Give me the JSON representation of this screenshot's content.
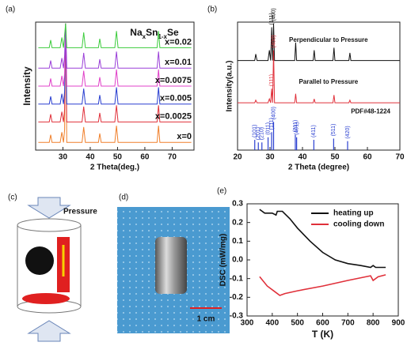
{
  "chart_data": [
    {
      "type": "line",
      "panel_label": "(a)",
      "title": [
        "Na",
        "x",
        "Sn",
        "1-x",
        "Se"
      ],
      "x_label": "2 Theta(deg.)",
      "y_label": "Intensity",
      "xlim": [
        20,
        78
      ],
      "xticks": [
        30,
        40,
        50,
        60,
        70
      ],
      "ylim": [
        0,
        100
      ],
      "x": [
        21,
        25,
        25.5,
        26,
        29,
        29.6,
        30.2,
        30.6,
        31,
        31.4,
        32,
        37,
        37.6,
        38.2,
        43,
        43.5,
        44,
        49,
        49.6,
        50.2,
        64.5,
        65,
        65.5,
        77
      ],
      "series": [
        {
          "name": "x=0",
          "color": "#f07f2a",
          "values": [
            6,
            6,
            12,
            6,
            6,
            14,
            6,
            16,
            99,
            6,
            6,
            6,
            18,
            6,
            6,
            13,
            6,
            6,
            19,
            6,
            6,
            19,
            6,
            6
          ]
        },
        {
          "name": "x=0.0025",
          "color": "#e0303a",
          "values": [
            22,
            22,
            28,
            22,
            22,
            30,
            22,
            32,
            99,
            22,
            22,
            22,
            34,
            22,
            22,
            29,
            22,
            22,
            35,
            22,
            22,
            35,
            22,
            22
          ]
        },
        {
          "name": "x=0.005",
          "color": "#2a3fd0",
          "values": [
            36,
            36,
            42,
            36,
            36,
            44,
            36,
            46,
            99,
            36,
            36,
            36,
            48,
            36,
            36,
            43,
            36,
            36,
            49,
            36,
            36,
            49,
            36,
            36
          ]
        },
        {
          "name": "x=0.0075",
          "color": "#e040c8",
          "values": [
            50,
            50,
            56,
            50,
            50,
            58,
            50,
            60,
            99,
            50,
            50,
            50,
            62,
            50,
            50,
            57,
            50,
            50,
            63,
            50,
            50,
            63,
            50,
            50
          ]
        },
        {
          "name": "x=0.01",
          "color": "#9a3fd8",
          "values": [
            64,
            64,
            70,
            64,
            64,
            72,
            64,
            74,
            99,
            64,
            64,
            64,
            76,
            64,
            64,
            71,
            64,
            64,
            77,
            64,
            64,
            77,
            64,
            64
          ]
        },
        {
          "name": "x=0.02",
          "color": "#3ccc3c",
          "values": [
            80,
            80,
            86,
            80,
            80,
            88,
            80,
            90,
            99,
            80,
            80,
            80,
            92,
            80,
            80,
            87,
            80,
            80,
            93,
            80,
            80,
            93,
            80,
            80
          ]
        }
      ]
    },
    {
      "type": "line",
      "panel_label": "(b)",
      "x_label": "2 Theta (degree)",
      "y_label": "Intensity(a.u.)",
      "xlim": [
        20,
        70
      ],
      "xticks": [
        20,
        30,
        40,
        50,
        60,
        70
      ],
      "ylim": [
        0,
        100
      ],
      "series": [
        {
          "name": "Perpendicular to Pressure",
          "color": "#111111",
          "x": [
            20,
            25.3,
            25.6,
            26,
            29.4,
            29.8,
            30.2,
            30.5,
            30.8,
            31.1,
            31.4,
            32,
            37.6,
            37.9,
            38.2,
            43.3,
            43.6,
            43.9,
            49.4,
            49.7,
            50,
            54.3,
            54.6,
            54.9,
            70
          ],
          "values": [
            70,
            70,
            75,
            70,
            70,
            78,
            70,
            96,
            70,
            99,
            70,
            70,
            70,
            84,
            70,
            70,
            78,
            70,
            70,
            80,
            70,
            70,
            76,
            70,
            70
          ],
          "peak_labels": [
            {
              "x": 30.5,
              "label": "(111)"
            },
            {
              "x": 31.1,
              "label": "(400)"
            }
          ]
        },
        {
          "name": "Parallel to Pressure",
          "color": "#e0303a",
          "x": [
            20,
            25.3,
            25.6,
            26,
            29.4,
            29.8,
            30.2,
            30.5,
            30.8,
            31.1,
            31.4,
            32,
            37.6,
            37.9,
            38.2,
            43.3,
            43.6,
            43.9,
            49.4,
            49.7,
            50,
            54.3,
            54.6,
            54.9,
            70
          ],
          "values": [
            37,
            37,
            39,
            37,
            37,
            40,
            37,
            48,
            37,
            78,
            37,
            37,
            37,
            44,
            37,
            37,
            40,
            37,
            37,
            43,
            37,
            37,
            39,
            37,
            37
          ],
          "peak_labels": [
            {
              "x": 30.5,
              "label": "(111)"
            },
            {
              "x": 31.1,
              "label": "(400)"
            }
          ]
        },
        {
          "name": "PDF#48-1224",
          "color": "#2a3fd0",
          "type": "stick",
          "x": [
            25.3,
            26.4,
            27.5,
            29.4,
            30.5,
            31.1,
            37.8,
            38.2,
            43.5,
            49.6,
            53.9
          ],
          "values": [
            8,
            6,
            6,
            10,
            14,
            22,
            12,
            10,
            8,
            9,
            7
          ],
          "peak_labels": [
            {
              "x": 25.3,
              "label": "(101)"
            },
            {
              "x": 26.4,
              "label": "(201)"
            },
            {
              "x": 27.5,
              "label": "(210)"
            },
            {
              "x": 29.4,
              "label": "(011)"
            },
            {
              "x": 30.5,
              "label": "(111)"
            },
            {
              "x": 31.1,
              "label": "(400)"
            },
            {
              "x": 37.8,
              "label": "(211)"
            },
            {
              "x": 38.2,
              "label": "(401)"
            },
            {
              "x": 43.5,
              "label": "(411)"
            },
            {
              "x": 49.6,
              "label": "(511)"
            },
            {
              "x": 53.9,
              "label": "(420)"
            }
          ]
        }
      ]
    },
    {
      "type": "line",
      "panel_label": "(e)",
      "x_label": "T (K)",
      "y_label": "DSC (mW/mg)",
      "xlim": [
        300,
        900
      ],
      "xticks": [
        300,
        400,
        500,
        600,
        700,
        800,
        900
      ],
      "ylim": [
        -0.3,
        0.3
      ],
      "yticks": [
        -0.3,
        -0.2,
        -0.1,
        {
          "value": 0,
          "label": "0.0"
        },
        0.1,
        0.2,
        0.3
      ],
      "legend": "upper right",
      "series": [
        {
          "name": "heating up",
          "color": "#111111",
          "x": [
            350,
            370,
            400,
            415,
            420,
            440,
            470,
            500,
            550,
            600,
            650,
            700,
            750,
            790,
            800,
            810,
            850
          ],
          "values": [
            0.27,
            0.25,
            0.25,
            0.24,
            0.26,
            0.26,
            0.22,
            0.17,
            0.1,
            0.04,
            0,
            -0.02,
            -0.03,
            -0.04,
            -0.03,
            -0.04,
            -0.04
          ]
        },
        {
          "name": "cooling down",
          "color": "#e0303a",
          "x": [
            350,
            380,
            410,
            430,
            450,
            500,
            600,
            700,
            790,
            800,
            820,
            850
          ],
          "values": [
            -0.09,
            -0.14,
            -0.17,
            -0.19,
            -0.18,
            -0.165,
            -0.14,
            -0.11,
            -0.085,
            -0.11,
            -0.09,
            -0.08
          ]
        }
      ]
    }
  ],
  "diagram": {
    "panel_label": "(c)",
    "pressure_label": "Pressure"
  },
  "photo": {
    "panel_label": "(d)",
    "scale_label": "1 cm"
  }
}
